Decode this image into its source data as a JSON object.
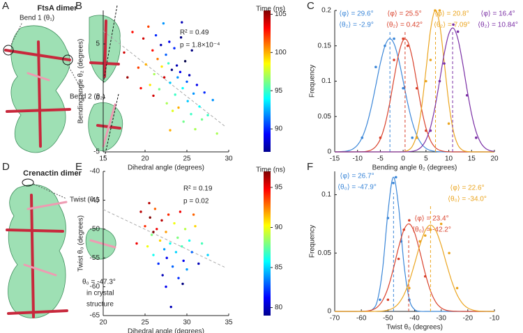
{
  "images": [
    {
      "panel": "A",
      "title": "FtsA dimer",
      "labels": [
        "Bend 1 (θ₁)",
        "Bend 2 (θ₂)"
      ]
    },
    {
      "panel": "D",
      "title": "Crenactin dimer",
      "labels": [
        "Twist (θ₀)"
      ],
      "note": [
        "θ₀ = -47.3°",
        "in crystal",
        "structure"
      ]
    }
  ],
  "chart_data": [
    {
      "panel": "B",
      "type": "scatter",
      "xlabel": "Dihedral angle (degrees)",
      "ylabel": "Bending angle θ₂ (degrees)",
      "annotations": [
        "R² = 0.49",
        "p = 1.8×10⁻⁴"
      ],
      "x": [
        17.5,
        18.5,
        19.2,
        19.8,
        20.1,
        20.4,
        20.6,
        20.9,
        21.1,
        21.3,
        21.5,
        21.7,
        21.9,
        22.0,
        22.2,
        22.3,
        22.5,
        22.6,
        22.8,
        22.9,
        23.0,
        23.2,
        23.3,
        23.5,
        23.6,
        23.8,
        23.9,
        24.0,
        24.2,
        24.3,
        24.5,
        24.6,
        24.8,
        25.0,
        25.1,
        25.3,
        25.5,
        25.6,
        25.8,
        26.0,
        26.2,
        26.5,
        26.8,
        27.1,
        27.5,
        28.1,
        28.6,
        21.0,
        19.5,
        23.0,
        17.9,
        24.4
      ],
      "values": [
        4.2,
        6.1,
        2.8,
        5.5,
        3.1,
        6.6,
        1.2,
        4.4,
        2.2,
        5.8,
        3.6,
        0.8,
        4.9,
        2.9,
        6.9,
        1.9,
        4.0,
        -0.5,
        3.2,
        5.2,
        1.4,
        2.6,
        -1.2,
        4.6,
        0.3,
        3.0,
        1.9,
        -0.9,
        2.4,
        5.6,
        0.9,
        -2.2,
        3.4,
        1.5,
        -0.3,
        2.1,
        -1.5,
        4.4,
        0.4,
        -2.9,
        1.2,
        -0.8,
        -2.0,
        0.5,
        -1.6,
        -0.2,
        -3.3,
        0.2,
        0.9,
        -3.0,
        1.9,
        7.0
      ],
      "color_values": [
        104,
        103,
        102,
        104,
        100,
        102,
        99,
        103,
        97,
        90,
        101,
        96,
        88,
        99,
        92,
        104,
        91,
        97,
        95,
        89,
        93,
        87,
        98,
        90,
        95,
        88,
        92,
        100,
        89,
        87,
        94,
        96,
        86,
        91,
        93,
        88,
        95,
        87,
        92,
        97,
        89,
        94,
        96,
        90,
        95,
        92,
        97,
        104,
        103,
        100,
        105,
        88
      ],
      "colormap": "jet",
      "colorbar_label": "Time (ns)",
      "clim": [
        87,
        105.5
      ],
      "cticks": [
        90,
        95,
        100,
        105
      ],
      "trend": {
        "x": [
          15,
          29.5
        ],
        "values": [
          6.2,
          -2.6
        ],
        "color": "#aaaaaa"
      },
      "xlim": [
        15,
        30
      ],
      "xticks": [
        15,
        20,
        25,
        30
      ],
      "ylim": [
        -5,
        8.1
      ],
      "yticks": [
        -5,
        0,
        5
      ]
    },
    {
      "panel": "C",
      "type": "line",
      "xlabel": "Bending angle θ₂ (degrees)",
      "ylabel": "Frequency",
      "x": [
        -15,
        -14,
        -13,
        -12,
        -11,
        -10,
        -9,
        -8,
        -7,
        -6,
        -5,
        -4,
        -3,
        -2,
        -1,
        0,
        1,
        2,
        3,
        4,
        5,
        6,
        7,
        8,
        9,
        10,
        11,
        12,
        13,
        14,
        15,
        16,
        17,
        18,
        19,
        20
      ],
      "series": [
        {
          "color": "#3a86d8",
          "values": [
            0,
            0.0002,
            0.0006,
            0.0016,
            0.0042,
            0.0097,
            0.0202,
            0.0377,
            0.0629,
            0.0938,
            0.1252,
            0.1496,
            0.16,
            0.153,
            0.131,
            0.1003,
            0.0687,
            0.0421,
            0.0231,
            0.0114,
            0.005,
            0.002,
            0.0007,
            0.0002,
            0,
            0,
            0,
            0,
            0,
            0,
            0,
            0,
            0,
            0,
            0,
            0
          ],
          "mean": -2.9,
          "phi_label": "⟨φ⟩ = 29.6°",
          "mean_label": "⟨θ₂⟩ = -2.9°",
          "points_x": [
            -9,
            -6,
            -4,
            -2,
            0,
            2
          ],
          "points_y": [
            0.02,
            0.12,
            0.15,
            0.16,
            0.09,
            0.02
          ]
        },
        {
          "color": "#d9412b",
          "values": [
            0,
            0,
            0,
            0,
            0,
            0.0001,
            0.0002,
            0.0008,
            0.0027,
            0.0076,
            0.0181,
            0.0376,
            0.0672,
            0.1037,
            0.1378,
            0.1579,
            0.156,
            0.133,
            0.0977,
            0.0619,
            0.0338,
            0.016,
            0.0064,
            0.0023,
            0.0007,
            0.0002,
            0,
            0,
            0,
            0,
            0,
            0,
            0,
            0,
            0,
            0
          ],
          "mean": 0.42,
          "phi_label": "⟨φ⟩ = 25.5°",
          "mean_label": "⟨θ₂⟩ = 0.42°",
          "points_x": [
            -5,
            -2,
            0,
            1,
            3,
            5
          ],
          "points_y": [
            0.02,
            0.13,
            0.16,
            0.15,
            0.09,
            0.03
          ]
        },
        {
          "color": "#eba51f",
          "values": [
            0,
            0,
            0,
            0,
            0,
            0,
            0,
            0,
            0,
            0,
            0,
            0,
            0,
            0,
            0,
            0.0004,
            0.0019,
            0.0078,
            0.0247,
            0.0608,
            0.1158,
            0.1724,
            0.2,
            0.1803,
            0.1267,
            0.0694,
            0.0296,
            0.0099,
            0.0025,
            0.0005,
            0,
            0,
            0,
            0,
            0,
            0
          ],
          "mean": 7.09,
          "phi_label": "⟨φ⟩ = 20.8°",
          "mean_label": "⟨θ₂⟩ = 7.09°",
          "points_x": [
            3,
            5,
            6,
            7,
            8,
            10
          ],
          "points_y": [
            0.02,
            0.1,
            0.13,
            0.2,
            0.2,
            0.04
          ]
        },
        {
          "color": "#7a2fa5",
          "values": [
            0,
            0,
            0,
            0,
            0,
            0,
            0,
            0,
            0,
            0,
            0,
            0,
            0,
            0,
            0,
            0,
            0.0002,
            0.0008,
            0.0026,
            0.0071,
            0.0169,
            0.035,
            0.0639,
            0.1007,
            0.1388,
            0.1667,
            0.175,
            0.1596,
            0.127,
            0.0883,
            0.0535,
            0.0283,
            0.013,
            0.0052,
            0.0018,
            0.0006
          ],
          "mean": 10.84,
          "phi_label": "⟨φ⟩ = 16.4°",
          "mean_label": "⟨θ₂⟩ = 10.84°",
          "points_x": [
            6,
            8,
            9,
            11,
            12,
            14,
            16
          ],
          "points_y": [
            0.03,
            0.1,
            0.125,
            0.18,
            0.17,
            0.08,
            0.02
          ]
        }
      ],
      "xlim": [
        -15,
        20
      ],
      "xticks": [
        -15,
        -10,
        -5,
        0,
        5,
        10,
        15,
        20
      ],
      "ylim": [
        0,
        0.2
      ],
      "yticks": [
        0,
        0.05,
        0.1,
        0.15,
        0.2
      ]
    },
    {
      "panel": "E",
      "type": "scatter",
      "xlabel": "Dihedral angle (degrees)",
      "ylabel": "Twist θ₀ (degrees)",
      "annotations": [
        "R² = 0.19",
        "p = 0.02"
      ],
      "x": [
        24.0,
        24.5,
        25.0,
        25.3,
        25.6,
        25.8,
        26.0,
        26.2,
        26.4,
        26.6,
        26.8,
        27.0,
        27.1,
        27.3,
        27.5,
        27.6,
        27.8,
        28.0,
        28.1,
        28.3,
        28.5,
        28.7,
        28.9,
        29.0,
        29.2,
        29.4,
        29.6,
        29.8,
        30.0,
        30.3,
        30.6,
        31.0,
        31.4,
        31.8,
        32.5,
        27.5,
        26.0,
        25.5,
        29.5,
        30.8
      ],
      "values": [
        -52.5,
        -47,
        -49.5,
        -53,
        -48,
        -51,
        -54.5,
        -46.5,
        -50,
        -56,
        -52,
        -48.5,
        -58,
        -53.5,
        -50.5,
        -55,
        -47.5,
        -52.5,
        -63.5,
        -56.5,
        -49,
        -54,
        -51.5,
        -58.5,
        -47,
        -53,
        -55.5,
        -50,
        -57,
        -52,
        -54,
        -49.5,
        -56,
        -52.5,
        -54.5,
        -60,
        -50.5,
        -45.5,
        -59.5,
        -47.5
      ],
      "color_values": [
        95,
        96,
        94,
        90,
        97,
        88,
        86,
        93,
        95,
        82,
        91,
        96,
        80,
        84,
        92,
        81,
        94,
        86,
        80,
        83,
        90,
        85,
        88,
        82,
        95,
        87,
        81,
        89,
        84,
        86,
        83,
        91,
        80,
        87,
        85,
        81,
        97,
        96,
        79,
        93
      ],
      "colormap": "jet",
      "colorbar_label": "Time (ns)",
      "clim": [
        79,
        97
      ],
      "cticks": [
        80,
        85,
        90,
        95
      ],
      "trend": {
        "x": [
          20,
          34.5
        ],
        "values": [
          -46.6,
          -56.6
        ],
        "color": "#aaaaaa"
      },
      "xlim": [
        20,
        35
      ],
      "xticks": [
        20,
        25,
        30,
        35
      ],
      "ylim": [
        -65,
        -40
      ],
      "yticks": [
        -65,
        -60,
        -55,
        -50,
        -45,
        -40
      ]
    },
    {
      "panel": "F",
      "type": "line",
      "xlabel": "Twist θ₀ (degrees)",
      "ylabel": "Frequency",
      "x": [
        -70,
        -68,
        -66,
        -64,
        -62,
        -60,
        -58,
        -56,
        -54,
        -52,
        -50,
        -48,
        -46,
        -44,
        -42,
        -40,
        -38,
        -36,
        -34,
        -32,
        -30,
        -28,
        -26,
        -24,
        -22,
        -20,
        -18,
        -16,
        -14,
        -12,
        -10
      ],
      "series": [
        {
          "color": "#3a86d8",
          "values": [
            0,
            0,
            0,
            0,
            0,
            0,
            0.0001,
            0.0013,
            0.009,
            0.0364,
            0.085,
            0.115,
            0.0898,
            0.0406,
            0.0106,
            0.0016,
            0.0001,
            0,
            0,
            0,
            0,
            0,
            0,
            0,
            0,
            0,
            0,
            0,
            0,
            0,
            0
          ],
          "mean": -47.9,
          "phi_label": "⟨φ⟩ = 26.7°",
          "mean_label": "⟨θ₀⟩ = -47.9°",
          "points_x": [
            -53,
            -50,
            -48,
            -47,
            -45,
            -42
          ],
          "points_y": [
            0.01,
            0.08,
            0.11,
            0.115,
            0.06,
            0.01
          ]
        },
        {
          "color": "#d9412b",
          "values": [
            0,
            0,
            0,
            0,
            0,
            0.0001,
            0.0003,
            0.0012,
            0.0037,
            0.0094,
            0.02,
            0.0362,
            0.0548,
            0.0699,
            0.075,
            0.0675,
            0.0511,
            0.0326,
            0.0175,
            0.0079,
            0.003,
            0.0009,
            0.0003,
            0.0001,
            0,
            0,
            0,
            0,
            0,
            0,
            0
          ],
          "mean": -42.2,
          "phi_label": "⟨φ⟩ = 23.4°",
          "mean_label": "⟨θ₀⟩ = -42.2°",
          "points_x": [
            -50,
            -46,
            -44,
            -42,
            -38,
            -36
          ],
          "points_y": [
            0.01,
            0.045,
            0.07,
            0.078,
            0.06,
            0.03
          ]
        },
        {
          "color": "#eba51f",
          "values": [
            0,
            0,
            0,
            0,
            0,
            0,
            0,
            0,
            0.0001,
            0.0003,
            0.0011,
            0.0029,
            0.0069,
            0.0142,
            0.0257,
            0.0408,
            0.0568,
            0.0693,
            0.074,
            0.0693,
            0.0568,
            0.0408,
            0.0257,
            0.0142,
            0.0069,
            0.0029,
            0.0011,
            0.0003,
            0.0001,
            0,
            0
          ],
          "mean": -34,
          "phi_label": "⟨φ⟩ = 22.6°",
          "mean_label": "⟨θ₀⟩ = -34.0°",
          "points_x": [
            -42,
            -38,
            -36,
            -34,
            -30,
            -27,
            -24
          ],
          "points_y": [
            0.02,
            0.06,
            0.065,
            0.07,
            0.075,
            0.05,
            0.02
          ]
        }
      ],
      "xlim": [
        -70,
        -10
      ],
      "xticks": [
        -70,
        -60,
        -50,
        -40,
        -30,
        -20,
        -10
      ],
      "ylim": [
        0,
        0.12
      ],
      "yticks": [
        0,
        0.05,
        0.1
      ]
    }
  ]
}
